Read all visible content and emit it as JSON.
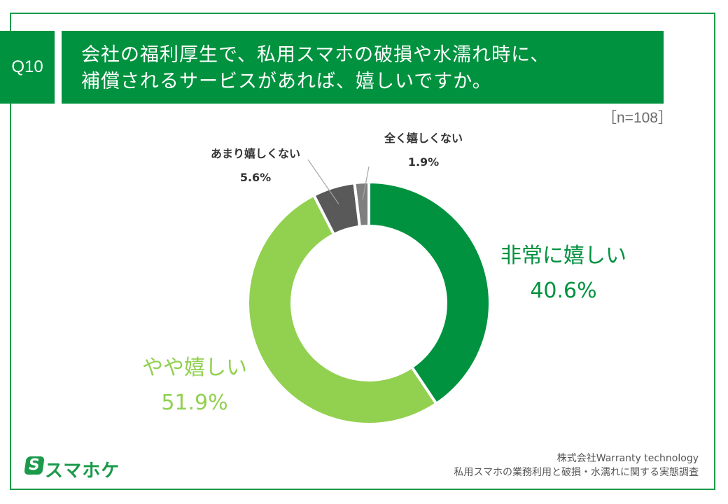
{
  "question": {
    "number": "Q10",
    "title_line1": "会社の福利厚生で、私用スマホの破損や水濡れ時に、",
    "title_line2": "補償されるサービスがあれば、嬉しいですか。"
  },
  "sample_size": "［n=108］",
  "colors": {
    "brand_green": "#00923f",
    "light_green": "#92d050",
    "dark_gray": "#595959",
    "gray": "#7f7f7f"
  },
  "chart_data": {
    "type": "pie",
    "variant": "donut",
    "start_angle_deg": 0,
    "direction": "clockwise",
    "slices": [
      {
        "label": "非常に嬉しい",
        "value": 40.6,
        "display": "40.6%",
        "color": "#00923f"
      },
      {
        "label": "やや嬉しい",
        "value": 51.9,
        "display": "51.9%",
        "color": "#92d050"
      },
      {
        "label": "あまり嬉しくない",
        "value": 5.6,
        "display": "5.6%",
        "color": "#595959"
      },
      {
        "label": "全く嬉しくない",
        "value": 1.9,
        "display": "1.9%",
        "color": "#7f7f7f"
      }
    ]
  },
  "logo": {
    "mark": "S",
    "text": "スマホケ"
  },
  "source": {
    "line1": "株式会社Warranty technology",
    "line2": "私用スマホの業務利用と破損・水濡れに関する実態調査"
  }
}
